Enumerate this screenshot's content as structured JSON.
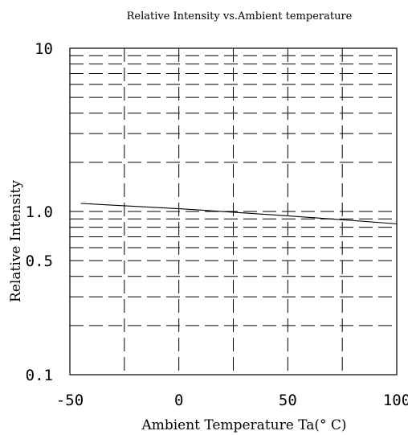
{
  "chart_data": {
    "type": "line",
    "title": "Relative Intensity vs.Ambient temperature",
    "xlabel": "Ambient Temperature Ta(° C)",
    "ylabel": "Relative Intensity",
    "xlim": [
      -50,
      100
    ],
    "ylim": [
      0.1,
      10
    ],
    "yscale": "log",
    "grid": true,
    "x_ticks": [
      -50,
      0,
      50,
      100
    ],
    "x_tick_labels": [
      "-50",
      "0",
      "50",
      "100"
    ],
    "x_grid": [
      -25,
      0,
      25,
      50,
      75
    ],
    "y_ticks": [
      0.1,
      0.5,
      1.0,
      10
    ],
    "y_tick_labels": [
      "0.1",
      "0.5",
      "1.0",
      "10"
    ],
    "y_grid": [
      0.2,
      0.3,
      0.4,
      0.5,
      0.6,
      0.7,
      0.8,
      0.9,
      1,
      2,
      3,
      4,
      5,
      6,
      7,
      8,
      9
    ],
    "series": [
      {
        "x": [
          -45,
          0,
          25,
          50,
          75,
          100
        ],
        "y": [
          1.12,
          1.04,
          0.99,
          0.94,
          0.89,
          0.84
        ]
      }
    ]
  }
}
